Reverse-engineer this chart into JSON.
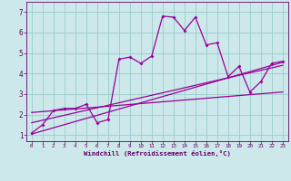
{
  "xlabel": "Windchill (Refroidissement éolien,°C)",
  "bg_color": "#cce8ea",
  "grid_color": "#99cccc",
  "line_color": "#990099",
  "xlim": [
    -0.5,
    23.5
  ],
  "ylim": [
    0.7,
    7.5
  ],
  "xticks": [
    0,
    1,
    2,
    3,
    4,
    5,
    6,
    7,
    8,
    9,
    10,
    11,
    12,
    13,
    14,
    15,
    16,
    17,
    18,
    19,
    20,
    21,
    22,
    23
  ],
  "yticks": [
    1,
    2,
    3,
    4,
    5,
    6,
    7
  ],
  "data_x": [
    0,
    1,
    2,
    3,
    4,
    5,
    6,
    7,
    8,
    9,
    10,
    11,
    12,
    13,
    14,
    15,
    16,
    17,
    18,
    19,
    20,
    21,
    22,
    23
  ],
  "data_y": [
    1.1,
    1.5,
    2.2,
    2.3,
    2.3,
    2.5,
    1.6,
    1.75,
    4.7,
    4.8,
    4.5,
    4.85,
    6.8,
    6.75,
    6.1,
    6.75,
    5.4,
    5.5,
    3.85,
    4.35,
    3.1,
    3.6,
    4.5,
    4.6
  ],
  "trend1_x": [
    0,
    23
  ],
  "trend1_y": [
    1.05,
    4.55
  ],
  "trend2_x": [
    0,
    23
  ],
  "trend2_y": [
    1.6,
    4.4
  ],
  "trend3_x": [
    0,
    23
  ],
  "trend3_y": [
    2.1,
    3.1
  ]
}
